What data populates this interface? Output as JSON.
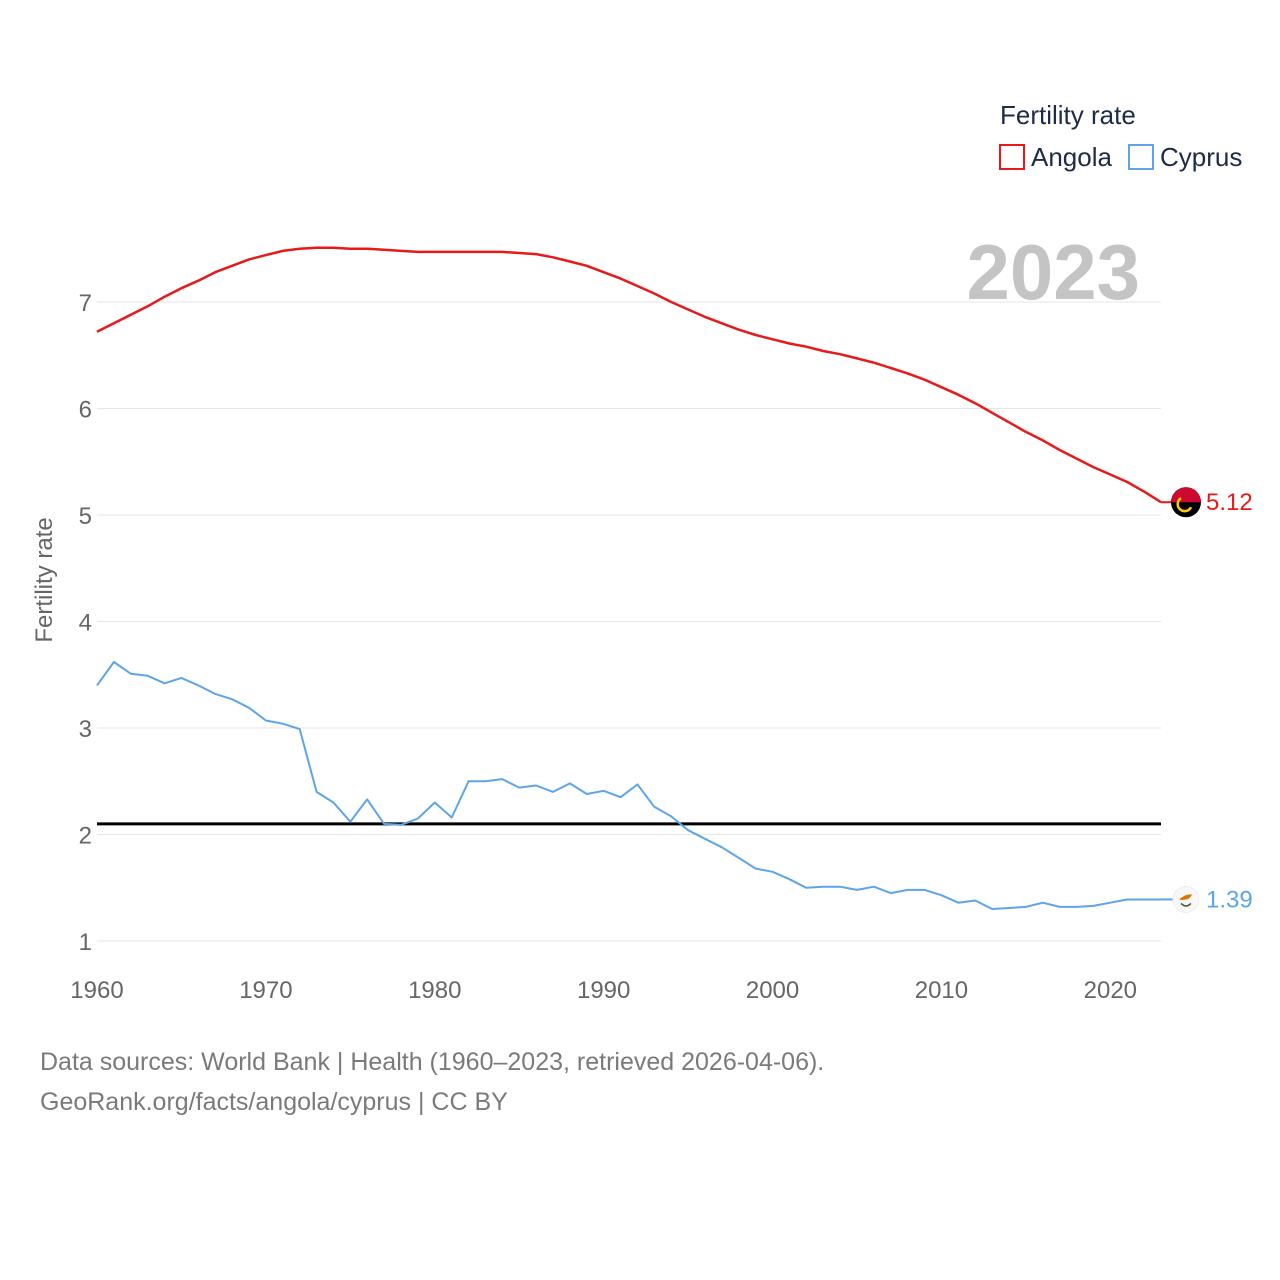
{
  "chart_data": {
    "type": "line",
    "ylabel": "Fertility rate",
    "year_label": "2023",
    "legend_title": "Fertility rate",
    "x_ticks": [
      "1960",
      "1970",
      "1980",
      "1990",
      "2000",
      "2010",
      "2020"
    ],
    "y_ticks": [
      "1",
      "2",
      "3",
      "4",
      "5",
      "6",
      "7"
    ],
    "xlim": [
      1960,
      2023
    ],
    "ylim": [
      1,
      7.5
    ],
    "reference_line": 2.1,
    "x": [
      1960,
      1961,
      1962,
      1963,
      1964,
      1965,
      1966,
      1967,
      1968,
      1969,
      1970,
      1971,
      1972,
      1973,
      1974,
      1975,
      1976,
      1977,
      1978,
      1979,
      1980,
      1981,
      1982,
      1983,
      1984,
      1985,
      1986,
      1987,
      1988,
      1989,
      1990,
      1991,
      1992,
      1993,
      1994,
      1995,
      1996,
      1997,
      1998,
      1999,
      2000,
      2001,
      2002,
      2003,
      2004,
      2005,
      2006,
      2007,
      2008,
      2009,
      2010,
      2011,
      2012,
      2013,
      2014,
      2015,
      2016,
      2017,
      2018,
      2019,
      2020,
      2021,
      2022,
      2023
    ],
    "series": [
      {
        "name": "Angola",
        "color": "#e8191a",
        "end_label": "5.12",
        "flag_icon": "angola-flag-icon",
        "values": [
          6.72,
          6.8,
          6.88,
          6.96,
          7.05,
          7.13,
          7.2,
          7.28,
          7.34,
          7.4,
          7.44,
          7.48,
          7.5,
          7.51,
          7.51,
          7.5,
          7.5,
          7.49,
          7.48,
          7.47,
          7.47,
          7.47,
          7.47,
          7.47,
          7.47,
          7.46,
          7.45,
          7.42,
          7.38,
          7.34,
          7.28,
          7.22,
          7.15,
          7.08,
          7.0,
          6.93,
          6.86,
          6.8,
          6.74,
          6.69,
          6.65,
          6.61,
          6.58,
          6.54,
          6.51,
          6.47,
          6.43,
          6.38,
          6.33,
          6.27,
          6.2,
          6.13,
          6.05,
          5.96,
          5.87,
          5.78,
          5.7,
          5.61,
          5.53,
          5.45,
          5.38,
          5.31,
          5.22,
          5.12
        ]
      },
      {
        "name": "Cyprus",
        "color": "#5da5e8",
        "end_label": "1.39",
        "flag_icon": "cyprus-flag-icon",
        "values": [
          3.4,
          3.62,
          3.51,
          3.49,
          3.42,
          3.47,
          3.4,
          3.32,
          3.27,
          3.19,
          3.07,
          3.04,
          2.99,
          2.4,
          2.3,
          2.12,
          2.33,
          2.1,
          2.09,
          2.15,
          2.3,
          2.16,
          2.5,
          2.5,
          2.52,
          2.44,
          2.46,
          2.4,
          2.48,
          2.38,
          2.41,
          2.35,
          2.47,
          2.26,
          2.17,
          2.04,
          1.96,
          1.88,
          1.78,
          1.68,
          1.65,
          1.58,
          1.5,
          1.51,
          1.51,
          1.48,
          1.51,
          1.45,
          1.48,
          1.48,
          1.43,
          1.36,
          1.38,
          1.3,
          1.31,
          1.32,
          1.36,
          1.32,
          1.32,
          1.33,
          1.36,
          1.39,
          1.39,
          1.39
        ]
      }
    ]
  },
  "footer": {
    "line1": "Data sources: World Bank | Health (1960–2023, retrieved 2026-04-06).",
    "line2": "GeoRank.org/facts/angola/cyprus | CC BY"
  }
}
